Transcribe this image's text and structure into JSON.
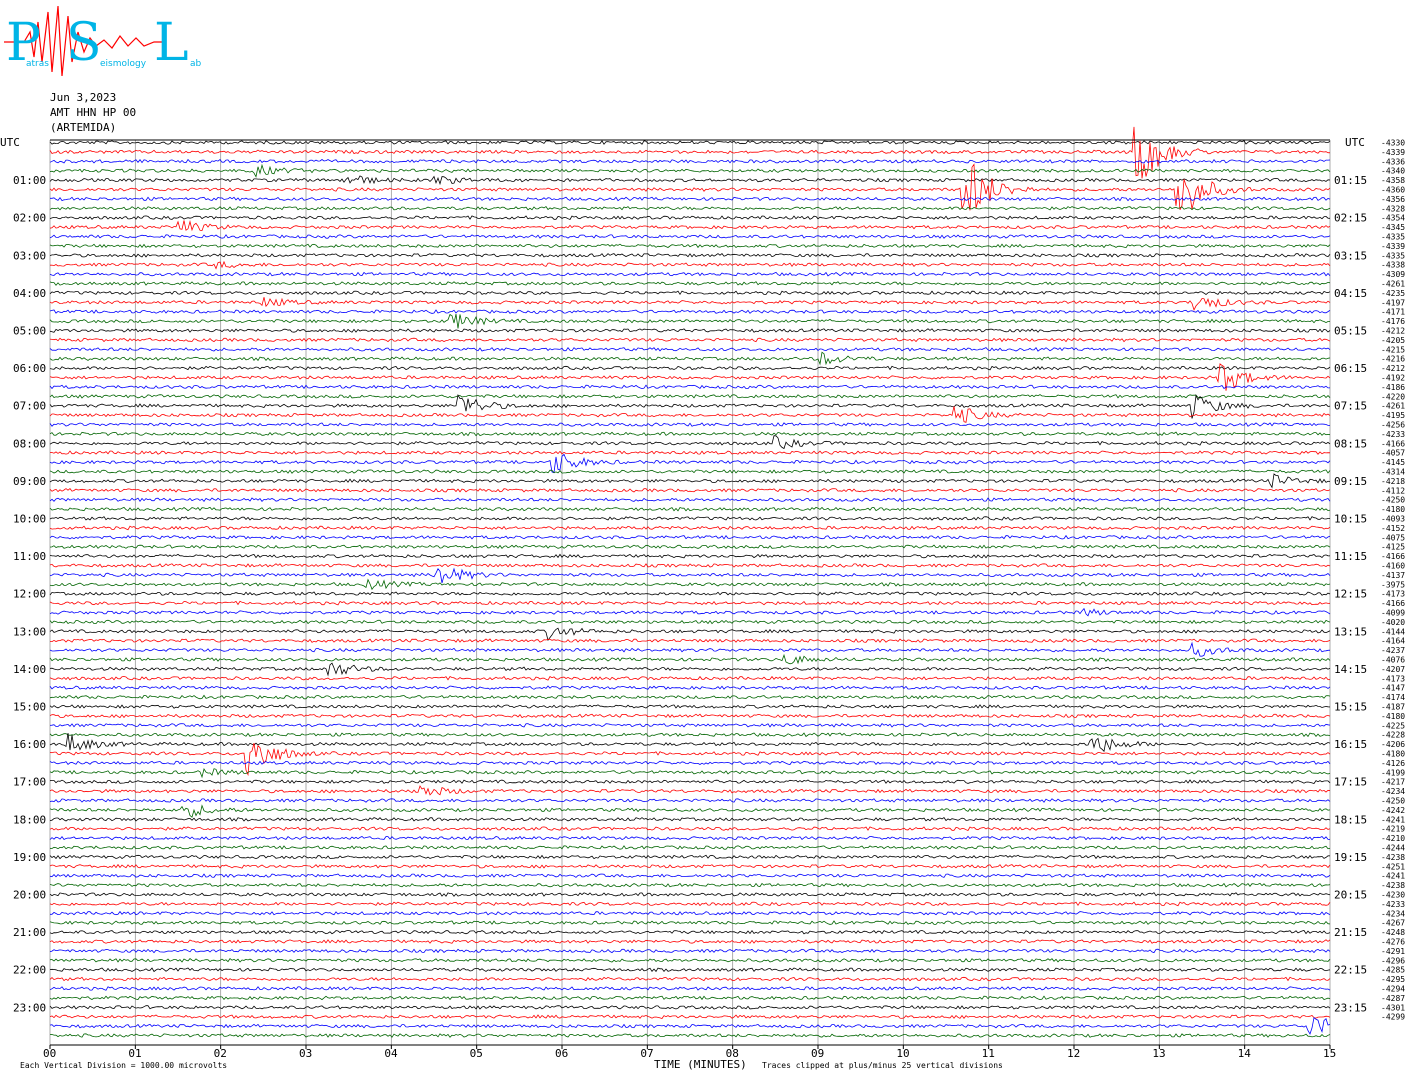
{
  "logo": {
    "letters": [
      "P",
      "S",
      "L"
    ],
    "words": [
      "atras",
      "eismology",
      "ab"
    ]
  },
  "header": {
    "date": "Jun 3,2023",
    "channel": "AMT HHN HP 00",
    "station": "(ARTEMIDA)"
  },
  "chart_data": {
    "type": "line",
    "title": "",
    "xlabel": "TIME (MINUTES)",
    "xlim": [
      0,
      15
    ],
    "x_ticks": [
      "00",
      "01",
      "02",
      "03",
      "04",
      "05",
      "06",
      "07",
      "08",
      "09",
      "10",
      "11",
      "12",
      "13",
      "14",
      "15"
    ],
    "left_axis_title": "UTC",
    "right_axis_title": "UTC",
    "left_labels": [
      "01:00",
      "02:00",
      "03:00",
      "04:00",
      "05:00",
      "06:00",
      "07:00",
      "08:00",
      "09:00",
      "10:00",
      "11:00",
      "12:00",
      "13:00",
      "14:00",
      "15:00",
      "16:00",
      "17:00",
      "18:00",
      "19:00",
      "20:00",
      "21:00",
      "22:00",
      "23:00"
    ],
    "right_labels": [
      "01:15",
      "02:15",
      "03:15",
      "04:15",
      "05:15",
      "06:15",
      "07:15",
      "08:15",
      "09:15",
      "10:15",
      "11:15",
      "12:15",
      "13:15",
      "14:15",
      "15:15",
      "16:15",
      "17:15",
      "18:15",
      "19:15",
      "20:15",
      "21:15",
      "22:15",
      "23:15"
    ],
    "trace_count": 96,
    "trace_colors": [
      "#000000",
      "#ff0000",
      "#0000ff",
      "#006400"
    ],
    "trace_offsets": [
      -4330,
      -4339,
      -4336,
      -4340,
      -4358,
      -4360,
      -4356,
      -4328,
      -4354,
      -4345,
      -4335,
      -4339,
      -4335,
      -4338,
      -4309,
      -4261,
      -4235,
      -4197,
      -4171,
      -4176,
      -4212,
      -4205,
      -4215,
      -4216,
      -4212,
      -4192,
      -4186,
      -4220,
      -4261,
      -4195,
      -4256,
      -4233,
      -4166,
      -4057,
      -4145,
      -4314,
      -4218,
      -4112,
      -4250,
      -4180,
      -4093,
      -4152,
      -4075,
      -4125,
      -4166,
      -4160,
      -4137,
      -3975,
      -4173,
      -4166,
      -4099,
      -4020,
      -4144,
      -4164,
      -4237,
      -4076,
      -4207,
      -4173,
      -4147,
      -4174,
      -4187,
      -4180,
      -4225,
      -4228,
      -4206,
      -4180,
      -4126,
      -4199,
      -4217,
      -4234,
      -4250,
      -4242,
      -4241,
      -4219,
      -4210,
      -4244,
      -4238,
      -4251,
      -4241,
      -4238,
      -4230,
      -4233,
      -4234,
      -4267,
      -4248,
      -4276,
      -4291,
      -4296,
      -4285,
      -4295,
      -4294,
      -4287,
      -4301,
      -4299
    ],
    "events": [
      {
        "trace": 3,
        "minute": 2.4,
        "amp": 1.0
      },
      {
        "trace": 4,
        "minute": 3.45,
        "amp": 1.2
      },
      {
        "trace": 4,
        "minute": 4.5,
        "amp": 0.8
      },
      {
        "trace": 9,
        "minute": 1.5,
        "amp": 1.3
      },
      {
        "trace": 13,
        "minute": 1.95,
        "amp": 0.5
      },
      {
        "trace": 17,
        "minute": 2.5,
        "amp": 0.8
      },
      {
        "trace": 19,
        "minute": 4.7,
        "amp": 1.6
      },
      {
        "trace": 5,
        "minute": 10.7,
        "amp": 8
      },
      {
        "trace": 1,
        "minute": 12.7,
        "amp": 8
      },
      {
        "trace": 5,
        "minute": 13.2,
        "amp": 7
      },
      {
        "trace": 17,
        "minute": 13.4,
        "amp": 1.8
      },
      {
        "trace": 23,
        "minute": 9.0,
        "amp": 1.3
      },
      {
        "trace": 25,
        "minute": 13.7,
        "amp": 3
      },
      {
        "trace": 28,
        "minute": 4.8,
        "amp": 2.2
      },
      {
        "trace": 28,
        "minute": 13.4,
        "amp": 2.2
      },
      {
        "trace": 29,
        "minute": 10.6,
        "amp": 1.8
      },
      {
        "trace": 32,
        "minute": 8.5,
        "amp": 1.0
      },
      {
        "trace": 34,
        "minute": 5.9,
        "amp": 2.2
      },
      {
        "trace": 36,
        "minute": 14.3,
        "amp": 1.2
      },
      {
        "trace": 46,
        "minute": 4.5,
        "amp": 2.5
      },
      {
        "trace": 47,
        "minute": 3.7,
        "amp": 1.0
      },
      {
        "trace": 50,
        "minute": 12.1,
        "amp": 0.6
      },
      {
        "trace": 52,
        "minute": 5.85,
        "amp": 1.2
      },
      {
        "trace": 54,
        "minute": 13.4,
        "amp": 1.2
      },
      {
        "trace": 55,
        "minute": 8.6,
        "amp": 1.0
      },
      {
        "trace": 56,
        "minute": 3.25,
        "amp": 1.6
      },
      {
        "trace": 64,
        "minute": 0.2,
        "amp": 1.8
      },
      {
        "trace": 64,
        "minute": 12.2,
        "amp": 2.2
      },
      {
        "trace": 65,
        "minute": 2.3,
        "amp": 5
      },
      {
        "trace": 67,
        "minute": 1.8,
        "amp": 0.6
      },
      {
        "trace": 69,
        "minute": 4.3,
        "amp": 1.4
      },
      {
        "trace": 71,
        "minute": 1.55,
        "amp": 1.6
      },
      {
        "trace": 94,
        "minute": 14.75,
        "amp": 2.5
      }
    ],
    "footer_left": "Each Vertical Division = 1000.00 microvolts",
    "footer_right": "Traces clipped at plus/minus 25 vertical divisions",
    "grid": true
  }
}
